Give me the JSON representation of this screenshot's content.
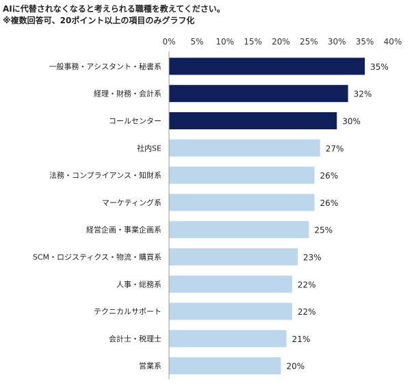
{
  "title": "AIに代替されなくなると考えられる職種を教えてください。",
  "subtitle": "※複数回答可、20ポイント以上の項目のみグラフ化",
  "colors": {
    "highlight": "#0f1f5a",
    "normal": "#bcd6ec",
    "axis": "#999999"
  },
  "chart_data": {
    "type": "bar",
    "orientation": "horizontal",
    "categories": [
      "一般事務・アシスタント・秘書系",
      "経理・財務・会計系",
      "コールセンター",
      "社内SE",
      "法務・コンプライアンス・知財系",
      "マーケティング系",
      "経営企画・事業企画系",
      "SCM・ロジスティクス・物流・購買系",
      "人事・総務系",
      "テクニカルサポート",
      "会計士・税理士",
      "営業系"
    ],
    "values": [
      35,
      32,
      30,
      27,
      26,
      26,
      25,
      23,
      22,
      22,
      21,
      20
    ],
    "value_labels": [
      "35%",
      "32%",
      "30%",
      "27%",
      "26%",
      "26%",
      "25%",
      "23%",
      "22%",
      "22%",
      "21%",
      "20%"
    ],
    "highlighted_count": 3,
    "xlim": [
      0,
      40
    ],
    "xticks": [
      "0%",
      "5%",
      "10%",
      "15%",
      "20%",
      "25%",
      "30%",
      "35%",
      "40%"
    ],
    "grid": false,
    "legend": "none"
  }
}
